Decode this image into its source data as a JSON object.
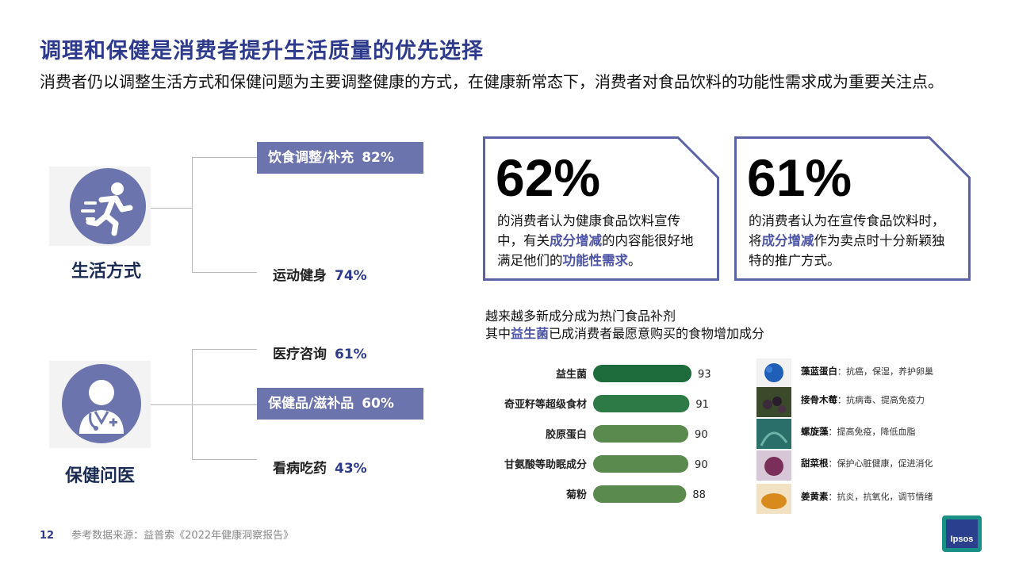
{
  "title": "调理和保健是消费者提升生活质量的优先选择",
  "subtitle": "消费者仍以调整生活方式和保健问题为主要调整健康的方式，在健康新常态下，消费者对食品饮料的功能性需求成为重要关注点。",
  "categories": [
    {
      "label": "生活方式",
      "icon": "running-person-icon",
      "items": [
        {
          "label": "饮食调整/补充",
          "pct": "82%",
          "highlight": true
        },
        {
          "label": "运动健身",
          "pct": "74%",
          "highlight": false
        }
      ]
    },
    {
      "label": "保健问医",
      "icon": "doctor-icon",
      "items": [
        {
          "label": "医疗咨询",
          "pct": "61%",
          "highlight": false
        },
        {
          "label": "保健品/滋补品",
          "pct": "60%",
          "highlight": true
        },
        {
          "label": "看病吃药",
          "pct": "43%",
          "highlight": false
        }
      ]
    }
  ],
  "stats": [
    {
      "value": "62%",
      "desc_a": "的消费者认为健康食品饮料宣传中，有关",
      "desc_b": "成分增减",
      "desc_c": "的内容能很好地满足他们的",
      "desc_d": "功能性需求",
      "desc_e": "。"
    },
    {
      "value": "61%",
      "desc_a": "的消费者认为在宣传食品饮料时，将",
      "desc_b": "成分增减",
      "desc_c": "作为卖点时十分新颖独特的推广方式。",
      "desc_d": "",
      "desc_e": ""
    }
  ],
  "chart_caption": {
    "line1": "越来越多新成分成为热门食品补剂",
    "line2_a": "其中",
    "line2_b": "益生菌",
    "line2_c": "已成消费者最愿意购买的食物增加成分"
  },
  "chart_data": {
    "type": "bar",
    "orientation": "horizontal",
    "categories": [
      "益生菌",
      "奇亚籽等超级食材",
      "胶原蛋白",
      "甘氨酸等助眠成分",
      "菊粉"
    ],
    "values": [
      93,
      91,
      90,
      90,
      88
    ],
    "colors": [
      "#1e6b3b",
      "#2d7a46",
      "#5b8a4e",
      "#5b8a4e",
      "#5b8a4e"
    ],
    "title": "",
    "xlabel": "",
    "ylabel": "",
    "xlim": [
      0,
      100
    ],
    "grid": false,
    "legend": "none"
  },
  "ingredients": [
    {
      "name": "藻蓝蛋白",
      "benefit": "：抗癌，保湿，养护卵巢",
      "color": "#1f5fb8"
    },
    {
      "name": "接骨木莓",
      "benefit": "：抗病毒、提高免疫力",
      "color": "#3b2a3a"
    },
    {
      "name": "螺旋藻",
      "benefit": "：提高免疫，降低血脂",
      "color": "#2a6f6a"
    },
    {
      "name": "甜菜根",
      "benefit": "：保护心脏健康，促进消化",
      "color": "#7a2f5a"
    },
    {
      "name": "姜黄素",
      "benefit": "：抗炎，抗氧化，调节情绪",
      "color": "#d98a1c"
    }
  ],
  "footer": {
    "page": "12",
    "source": "参考数据来源：益普索《2022年健康洞察报告》"
  },
  "logo_text": "Ipsos",
  "colors": {
    "accent": "#2e3b8c",
    "icon_bg": "#6c74ad",
    "box_border": "#5a63a5"
  }
}
